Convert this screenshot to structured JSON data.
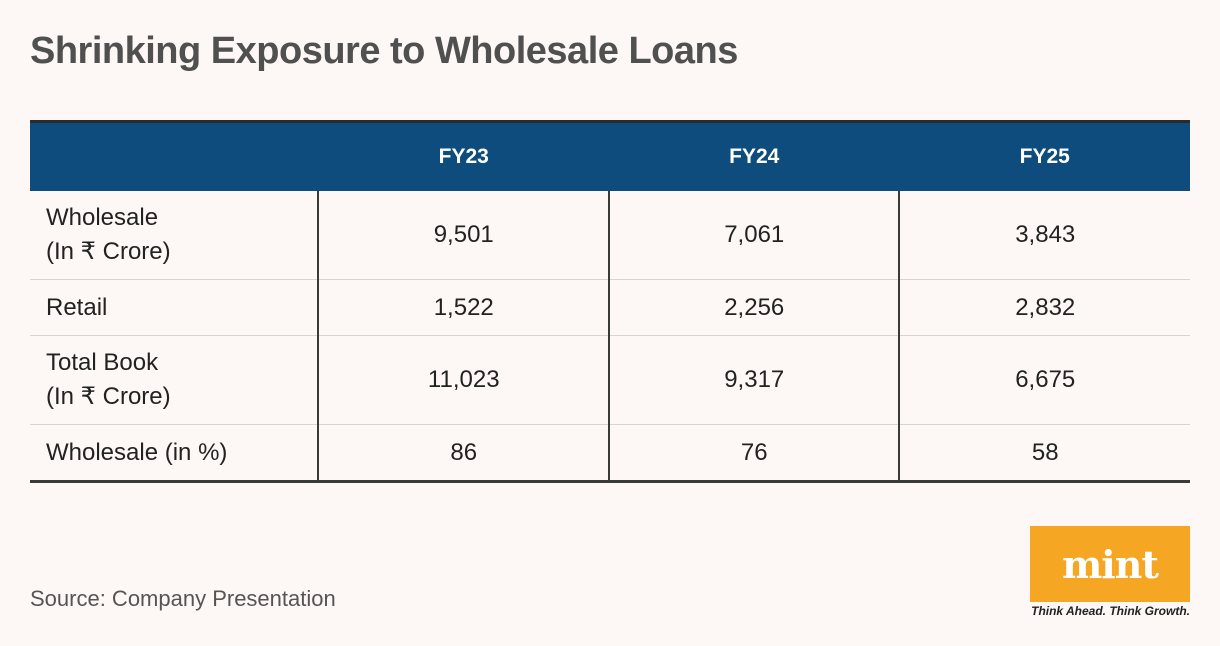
{
  "title": "Shrinking Exposure to Wholesale Loans",
  "source": "Source: Company Presentation",
  "logo": {
    "text": "mint",
    "tagline": "Think Ahead. Think Growth."
  },
  "chart_data": {
    "type": "table",
    "title": "Shrinking Exposure to Wholesale Loans",
    "columns": [
      "",
      "FY23",
      "FY24",
      "FY25"
    ],
    "rows": [
      {
        "label_line1": "Wholesale",
        "label_line2": "(In ₹ Crore)",
        "values": [
          "9,501",
          "7,061",
          "3,843"
        ]
      },
      {
        "label_line1": "Retail",
        "label_line2": "",
        "values": [
          "1,522",
          "2,256",
          "2,832"
        ]
      },
      {
        "label_line1": "Total Book",
        "label_line2": "(In ₹ Crore)",
        "values": [
          "11,023",
          "9,317",
          "6,675"
        ]
      },
      {
        "label_line1": "Wholesale (in %)",
        "label_line2": "",
        "values": [
          "86",
          "76",
          "58"
        ]
      }
    ]
  }
}
